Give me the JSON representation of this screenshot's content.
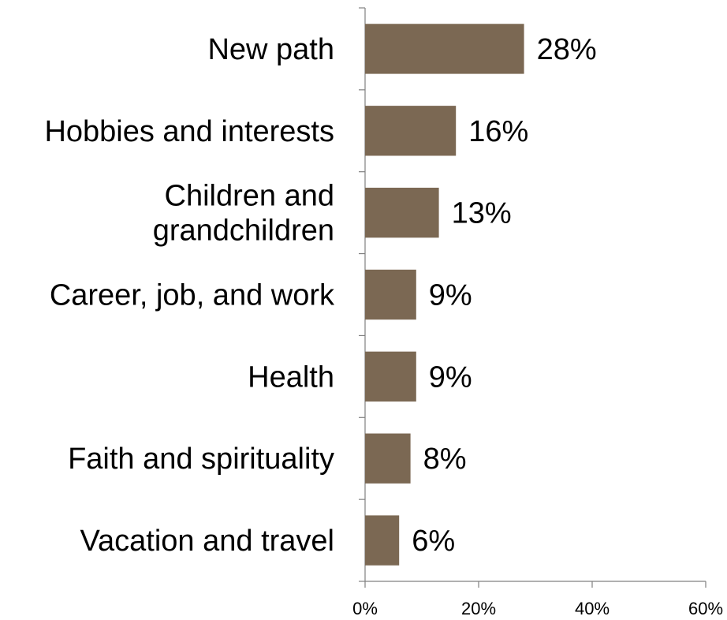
{
  "chart_data": {
    "type": "bar",
    "orientation": "horizontal",
    "title": "",
    "xlabel": "",
    "ylabel": "",
    "categories": [
      [
        "New path"
      ],
      [
        "Hobbies and interests"
      ],
      [
        "Children and",
        "grandchildren"
      ],
      [
        "Career, job, and work"
      ],
      [
        "Health"
      ],
      [
        "Faith and spirituality"
      ],
      [
        "Vacation and travel"
      ]
    ],
    "values": [
      28,
      16,
      13,
      9,
      9,
      8,
      6
    ],
    "value_labels": [
      "28%",
      "16%",
      "13%",
      "9%",
      "9%",
      "8%",
      "6%"
    ],
    "xlim": [
      0,
      60
    ],
    "x_ticks": [
      0,
      20,
      40,
      60
    ],
    "x_tick_labels": [
      "0%",
      "20%",
      "40%",
      "60%"
    ],
    "grid": false,
    "legend": "none",
    "bar_color": "#7b6853"
  }
}
